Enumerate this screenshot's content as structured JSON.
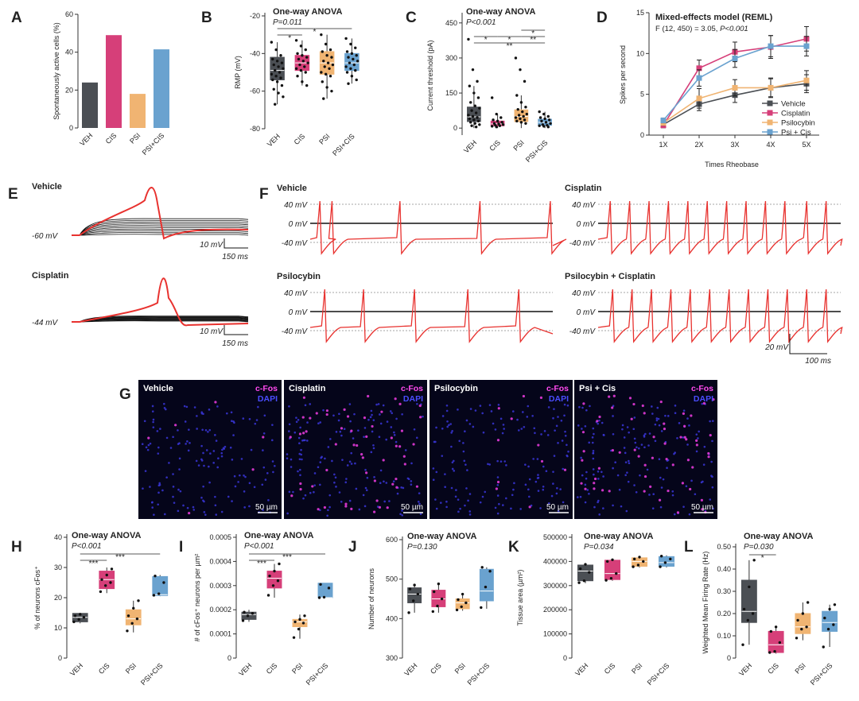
{
  "groups": [
    "VEH",
    "CIS",
    "PSI",
    "PSI+CIS"
  ],
  "colors": {
    "veh": "#4b4f54",
    "cis": "#d63f79",
    "psi": "#f0b472",
    "psicis": "#6aa2cf",
    "trace": "#e8322f"
  },
  "panel_letters": {
    "a": "A",
    "b": "B",
    "c": "C",
    "d": "D",
    "e": "E",
    "f": "F",
    "g": "G",
    "h": "H",
    "i": "I",
    "j": "J",
    "k": "K",
    "l": "L"
  },
  "chart_data": [
    {
      "id": "A",
      "type": "bar",
      "categories": [
        "VEH",
        "CIS",
        "PSI",
        "PSI+CIS"
      ],
      "values": [
        24,
        49,
        18,
        41.5
      ],
      "ylabel": "Spontaneously active cells (%)",
      "ylim": [
        0,
        60
      ],
      "yticks": [
        "0",
        "20",
        "40",
        "60"
      ]
    },
    {
      "id": "B",
      "type": "box",
      "title": "One-way ANOVA",
      "pvalue": "P=0.011",
      "categories": [
        "VEH",
        "CIS",
        "PSI",
        "PSI+CIS"
      ],
      "ylabel": "RMP (mV)",
      "ylim": [
        -80,
        -20
      ],
      "yticks": [
        "-20",
        "-40",
        "-60",
        "-80"
      ],
      "boxes": [
        {
          "min": -67,
          "q1": -54,
          "median": -49,
          "q3": -42,
          "max": -34
        },
        {
          "min": -57,
          "q1": -49,
          "median": -45,
          "q3": -41,
          "max": -33
        },
        {
          "min": -64,
          "q1": -51,
          "median": -45,
          "q3": -39,
          "max": -30
        },
        {
          "min": -56,
          "q1": -49,
          "median": -45,
          "q3": -40,
          "max": -32
        }
      ],
      "points": [
        [
          -34,
          -38,
          -41,
          -43,
          -44,
          -45,
          -46,
          -47,
          -48,
          -49,
          -50,
          -51,
          -52,
          -53,
          -54,
          -55,
          -57,
          -59,
          -61,
          -63,
          -67
        ],
        [
          -33,
          -36,
          -38,
          -40,
          -41,
          -42,
          -43,
          -44,
          -45,
          -46,
          -47,
          -48,
          -49,
          -50,
          -52,
          -55,
          -57
        ],
        [
          -30,
          -35,
          -38,
          -39,
          -41,
          -42,
          -44,
          -45,
          -46,
          -47,
          -48,
          -50,
          -51,
          -52,
          -55,
          -58,
          -60,
          -64
        ],
        [
          -32,
          -35,
          -37,
          -39,
          -40,
          -41,
          -42,
          -43,
          -44,
          -45,
          -46,
          -47,
          -48,
          -49,
          -50,
          -52,
          -54,
          -56
        ]
      ],
      "sig": [
        {
          "label": "*",
          "from": 0,
          "to": 1,
          "level": 1
        },
        {
          "label": "*",
          "from": 0,
          "to": 3,
          "level": 0
        }
      ]
    },
    {
      "id": "C",
      "type": "box",
      "title": "One-way ANOVA",
      "pvalue": "P<0.001",
      "categories": [
        "VEH",
        "CIS",
        "PSI",
        "PSI+CIS"
      ],
      "ylabel": "Current threshold (pA)",
      "ylim": [
        -30,
        480
      ],
      "yticks": [
        "0",
        "150",
        "300",
        "450"
      ],
      "ytickvals": [
        0,
        150,
        300,
        450
      ],
      "boxes": [
        {
          "min": 0,
          "q1": 28,
          "median": 48,
          "q3": 90,
          "max": 180
        },
        {
          "min": 0,
          "q1": 10,
          "median": 18,
          "q3": 30,
          "max": 60
        },
        {
          "min": 0,
          "q1": 28,
          "median": 50,
          "q3": 78,
          "max": 140
        },
        {
          "min": 0,
          "q1": 12,
          "median": 25,
          "q3": 38,
          "max": 70
        }
      ],
      "points": [
        [
          380,
          250,
          200,
          180,
          150,
          130,
          110,
          95,
          85,
          75,
          65,
          55,
          50,
          45,
          40,
          35,
          30,
          25,
          20,
          15,
          10,
          5
        ],
        [
          130,
          60,
          45,
          35,
          30,
          25,
          20,
          18,
          15,
          12,
          10,
          8,
          5
        ],
        [
          300,
          250,
          200,
          140,
          110,
          90,
          80,
          70,
          60,
          55,
          50,
          45,
          40,
          35,
          30,
          25,
          20
        ],
        [
          70,
          60,
          50,
          45,
          40,
          35,
          30,
          25,
          20,
          15,
          12,
          10,
          8,
          5
        ]
      ],
      "sig": [
        {
          "label": "*",
          "from": 2,
          "to": 3,
          "level": 0
        },
        {
          "label": "*",
          "from": 0,
          "to": 1,
          "level": 1
        },
        {
          "label": "*",
          "from": 1,
          "to": 2,
          "level": 1
        },
        {
          "label": "**",
          "from": 2,
          "to": 3,
          "level": 1
        },
        {
          "label": "**",
          "from": 0,
          "to": 3,
          "level": 2
        }
      ]
    },
    {
      "id": "D",
      "type": "line",
      "title": "Mixed-effects model (REML)",
      "subtitle_prefix": "F (12, 450) = 3.05, ",
      "subtitle_p": "P<0.001",
      "x": [
        "1X",
        "2X",
        "3X",
        "4X",
        "5X"
      ],
      "xlabel": "Times Rheobase",
      "ylabel": "Spikes per second",
      "ylim": [
        0,
        15
      ],
      "yticks": [
        "0",
        "5",
        "10",
        "15"
      ],
      "series": [
        {
          "name": "Vehicle",
          "values": [
            1.3,
            3.8,
            4.9,
            5.8,
            6.3
          ],
          "err": [
            0.3,
            0.8,
            0.9,
            1.2,
            1.1
          ]
        },
        {
          "name": "Cisplatin",
          "values": [
            1.2,
            8.2,
            10.2,
            10.8,
            11.8
          ],
          "err": [
            0.3,
            1.0,
            1.2,
            1.4,
            1.5
          ]
        },
        {
          "name": "Psilocybin",
          "values": [
            1.5,
            4.5,
            5.8,
            5.8,
            6.7
          ],
          "err": [
            0.3,
            1.2,
            1.0,
            1.1,
            1.2
          ]
        },
        {
          "name": "Psi + Cis",
          "values": [
            1.8,
            7.0,
            9.4,
            10.9,
            10.9
          ],
          "err": [
            0.3,
            1.0,
            1.1,
            1.3,
            1.2
          ]
        }
      ]
    },
    {
      "id": "H",
      "type": "box",
      "title": "One-way ANOVA",
      "pvalue": "P<0.001",
      "categories": [
        "VEH",
        "CIS",
        "PSI",
        "PSI+CIS"
      ],
      "ylabel": "% of neurons cFos⁺",
      "ylim": [
        0,
        40
      ],
      "yticks": [
        "0",
        "10",
        "20",
        "30",
        "40"
      ],
      "boxes": [
        {
          "min": 11.5,
          "q1": 12.0,
          "median": 13.5,
          "q3": 14.8,
          "max": 15.0
        },
        {
          "min": 21.5,
          "q1": 23.0,
          "median": 26.0,
          "q3": 28.8,
          "max": 30.0
        },
        {
          "min": 8.5,
          "q1": 11.0,
          "median": 13.0,
          "q3": 16.0,
          "max": 19.0
        },
        {
          "min": 20.5,
          "q1": 20.7,
          "median": 21.0,
          "q3": 27.0,
          "max": 27.5
        }
      ],
      "points": [
        [
          12,
          12.8,
          13.5,
          14,
          14.5
        ],
        [
          22,
          24,
          25,
          26,
          27.5,
          29.5
        ],
        [
          9,
          11.5,
          13,
          14,
          16.5,
          19
        ],
        [
          20.8,
          21.3,
          25,
          27.2
        ]
      ],
      "sig": [
        {
          "label": "***",
          "from": 0,
          "to": 3,
          "level": 0
        },
        {
          "label": "***",
          "from": 0,
          "to": 1,
          "level": 1
        }
      ]
    },
    {
      "id": "I",
      "type": "box",
      "title": "One-way ANOVA",
      "pvalue": "P<0.001",
      "categories": [
        "VEH",
        "CIS",
        "PSI",
        "PSI+CIS"
      ],
      "ylabel": "# of cFos⁺ neurons per µm²",
      "ylim": [
        0,
        0.0005
      ],
      "yticks": [
        "0",
        "0.0001",
        "0.0002",
        "0.0003",
        "0.0004",
        "0.0005"
      ],
      "boxes": [
        {
          "min": 0.00015,
          "q1": 0.00016,
          "median": 0.00018,
          "q3": 0.00019,
          "max": 0.0002
        },
        {
          "min": 0.00025,
          "q1": 0.00029,
          "median": 0.00033,
          "q3": 0.00036,
          "max": 0.00039
        },
        {
          "min": 8e-05,
          "q1": 0.00013,
          "median": 0.00015,
          "q3": 0.00016,
          "max": 0.00018
        },
        {
          "min": 0.00025,
          "q1": 0.00025,
          "median": 0.00025,
          "q3": 0.00031,
          "max": 0.00031
        }
      ],
      "points": [
        [
          0.000155,
          0.000175,
          0.000185,
          0.00019
        ],
        [
          0.00026,
          0.0003,
          0.00032,
          0.00034,
          0.00036,
          0.00039
        ],
        [
          8.5e-05,
          0.00012,
          0.000145,
          0.00015,
          0.00016,
          0.000175
        ],
        [
          0.00025,
          0.000252,
          0.00029,
          0.000305
        ]
      ],
      "sig": [
        {
          "label": "***",
          "from": 0,
          "to": 3,
          "level": 0
        },
        {
          "label": "***",
          "from": 0,
          "to": 1,
          "level": 1
        }
      ]
    },
    {
      "id": "J",
      "type": "box",
      "title": "One-way ANOVA",
      "pvalue": "P=0.130",
      "categories": [
        "VEH",
        "CIS",
        "PSI",
        "PSI+CIS"
      ],
      "ylabel": "Number of neurons",
      "ylim": [
        300,
        600
      ],
      "yticks": [
        "300",
        "400",
        "500",
        "600"
      ],
      "boxes": [
        {
          "min": 415,
          "q1": 440,
          "median": 462,
          "q3": 478,
          "max": 485
        },
        {
          "min": 415,
          "q1": 430,
          "median": 450,
          "q3": 472,
          "max": 490
        },
        {
          "min": 420,
          "q1": 425,
          "median": 440,
          "q3": 450,
          "max": 465
        },
        {
          "min": 425,
          "q1": 445,
          "median": 470,
          "q3": 525,
          "max": 530
        }
      ],
      "points": [
        [
          415,
          445,
          462,
          475,
          485
        ],
        [
          418,
          432,
          450,
          468,
          488
        ],
        [
          422,
          430,
          440,
          448,
          462
        ],
        [
          428,
          480,
          520,
          530
        ]
      ],
      "sig": []
    },
    {
      "id": "K",
      "type": "box",
      "title": "One-way ANOVA",
      "pvalue": "P=0.034",
      "categories": [
        "VEH",
        "CIS",
        "PSI",
        "PSI+CIS"
      ],
      "ylabel": "Tissue area (µm²)",
      "ylim": [
        0,
        500000
      ],
      "yticks": [
        "0",
        "100000",
        "200000",
        "300000",
        "400000",
        "500000"
      ],
      "boxes": [
        {
          "min": 310000,
          "q1": 320000,
          "median": 360000,
          "q3": 385000,
          "max": 390000
        },
        {
          "min": 320000,
          "q1": 325000,
          "median": 350000,
          "q3": 405000,
          "max": 408000
        },
        {
          "min": 375000,
          "q1": 380000,
          "median": 400000,
          "q3": 415000,
          "max": 420000
        },
        {
          "min": 375000,
          "q1": 380000,
          "median": 395000,
          "q3": 420000,
          "max": 425000
        }
      ],
      "points": [
        [
          312000,
          320000,
          355000,
          370000,
          388000
        ],
        [
          322000,
          330000,
          350000,
          400000,
          407000
        ],
        [
          378000,
          385000,
          400000,
          410000,
          418000
        ],
        [
          378000,
          395000,
          410000,
          422000
        ]
      ],
      "sig": []
    },
    {
      "id": "L",
      "type": "box",
      "title": "One-way ANOVA",
      "pvalue": "P=0.030",
      "categories": [
        "VEH",
        "CIS",
        "PSI",
        "PSI+CIS"
      ],
      "ylabel": "Weighted Mean Firing Rate (Hz)",
      "ylim": [
        0,
        0.5
      ],
      "yticks": [
        "0",
        "0.10",
        "0.20",
        "0.30",
        "0.40",
        "0.50"
      ],
      "boxes": [
        {
          "min": 0.06,
          "q1": 0.16,
          "median": 0.21,
          "q3": 0.35,
          "max": 0.44
        },
        {
          "min": 0.02,
          "q1": 0.025,
          "median": 0.06,
          "q3": 0.12,
          "max": 0.14
        },
        {
          "min": 0.08,
          "q1": 0.11,
          "median": 0.14,
          "q3": 0.2,
          "max": 0.25
        },
        {
          "min": 0.05,
          "q1": 0.12,
          "median": 0.16,
          "q3": 0.21,
          "max": 0.24
        }
      ],
      "points": [
        [
          0.06,
          0.17,
          0.2,
          0.22,
          0.32,
          0.44
        ],
        [
          0.025,
          0.03,
          0.07,
          0.12,
          0.14
        ],
        [
          0.09,
          0.13,
          0.14,
          0.17,
          0.2,
          0.25
        ],
        [
          0.05,
          0.13,
          0.15,
          0.18,
          0.22,
          0.24
        ]
      ],
      "sig": [
        {
          "label": "*",
          "from": 0,
          "to": 1,
          "level": 0
        }
      ]
    }
  ],
  "panel_e": {
    "traces": [
      {
        "label": "Vehicle",
        "voltage": "-60 mV",
        "scale_v": "10 mV",
        "scale_t": "150 ms"
      },
      {
        "label": "Cisplatin",
        "voltage": "-44 mV",
        "scale_v": "10 mV",
        "scale_t": "150 ms"
      }
    ]
  },
  "panel_f": {
    "voltage_labels": [
      "40 mV",
      "0 mV",
      "-40 mV"
    ],
    "traces": [
      {
        "label": "Vehicle",
        "spikes": [
          0.04,
          0.09,
          0.37,
          0.7,
          0.99
        ]
      },
      {
        "label": "Cisplatin",
        "spikes": [
          0.05,
          0.13,
          0.21,
          0.29,
          0.37,
          0.45,
          0.53,
          0.61,
          0.69,
          0.77,
          0.86,
          0.94
        ]
      },
      {
        "label": "Psilocybin",
        "spikes": [
          0.06,
          0.22,
          0.43,
          0.65,
          0.86
        ]
      },
      {
        "label": "Psilocybin + Cisplatin",
        "spikes": [
          0.06,
          0.14,
          0.22,
          0.3,
          0.38,
          0.46,
          0.54,
          0.62,
          0.7,
          0.78,
          0.86,
          0.94
        ]
      }
    ],
    "scale_v": "20 mV",
    "scale_t": "100 ms"
  },
  "panel_g": {
    "images": [
      {
        "label": "Vehicle",
        "stains": [
          "c-Fos",
          "DAPI"
        ],
        "scale": "50 µm",
        "cfos_density": 0.04
      },
      {
        "label": "Cisplatin",
        "stains": [
          "c-Fos",
          "DAPI"
        ],
        "scale": "50 µm",
        "cfos_density": 0.35
      },
      {
        "label": "Psilocybin",
        "stains": [
          "c-Fos",
          "DAPI"
        ],
        "scale": "50 µm",
        "cfos_density": 0.07
      },
      {
        "label": "Psi + Cis",
        "stains": [
          "c-Fos",
          "DAPI"
        ],
        "scale": "50 µm",
        "cfos_density": 0.38
      }
    ]
  }
}
